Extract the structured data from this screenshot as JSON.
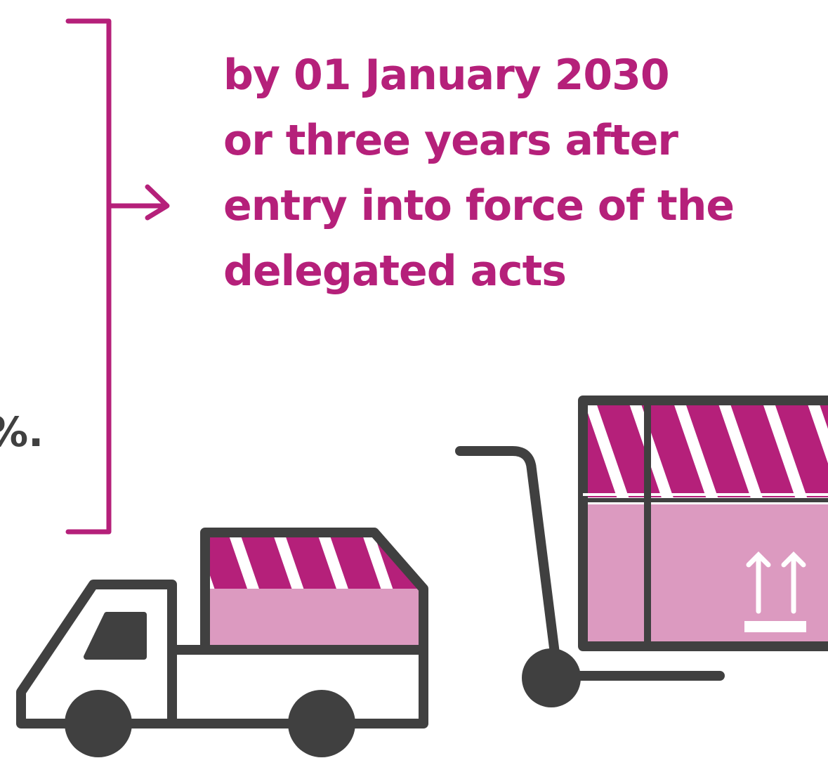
{
  "deadline": {
    "lines": [
      "by 01 January 2030",
      "or three years after",
      "entry into force of the",
      "delegated acts"
    ]
  },
  "partial_text": "%."
}
